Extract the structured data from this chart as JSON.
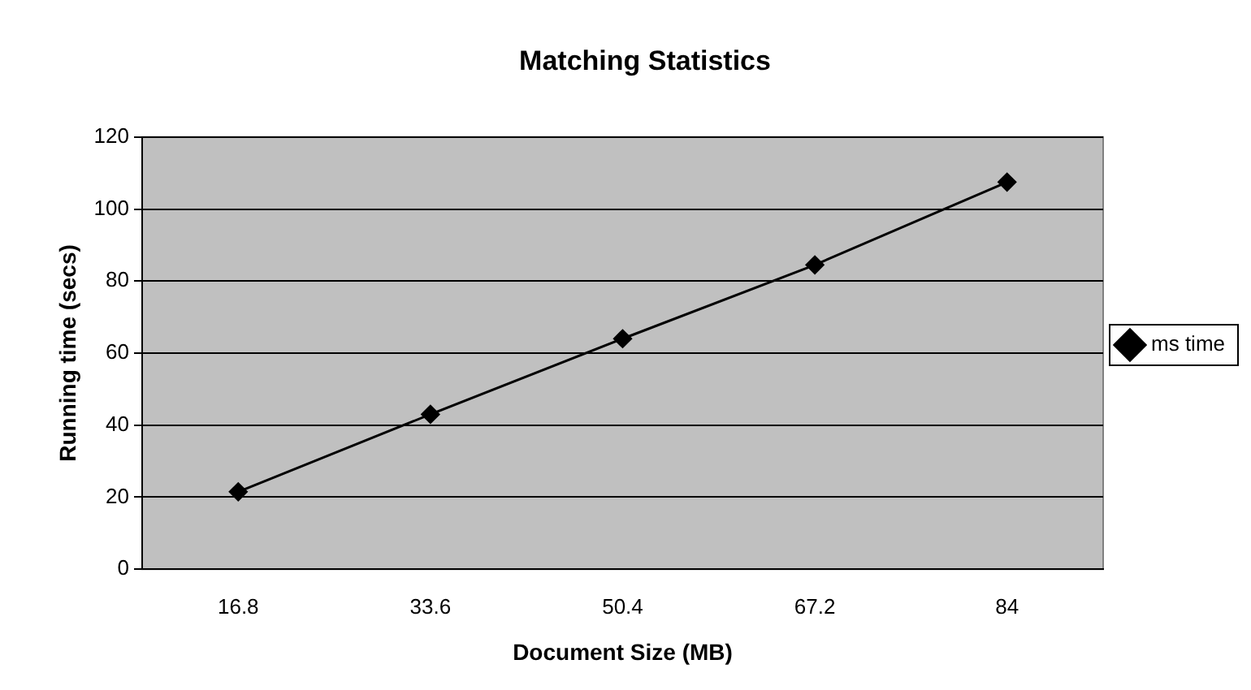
{
  "chart_data": {
    "type": "line",
    "title": "Matching Statistics",
    "xlabel": "Document Size (MB)",
    "ylabel": "Running time (secs)",
    "categories": [
      "16.8",
      "33.6",
      "50.4",
      "67.2",
      "84"
    ],
    "series": [
      {
        "name": "ms time",
        "color": "#000000",
        "values": [
          21.5,
          43,
          64,
          84.5,
          107.5
        ]
      }
    ],
    "ylim": [
      0,
      120
    ],
    "yticks": [
      0,
      20,
      40,
      60,
      80,
      100,
      120
    ],
    "grid": "y",
    "legend": "right",
    "marker": "diamond",
    "line_style": "solid"
  }
}
